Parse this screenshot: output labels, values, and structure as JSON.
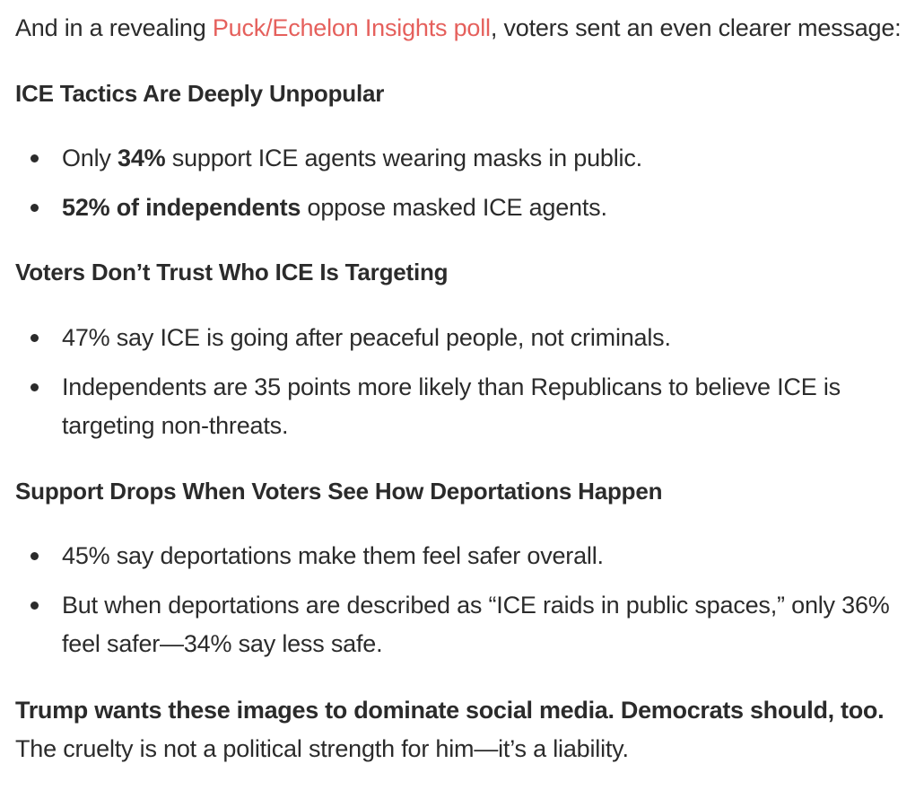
{
  "intro": {
    "before": "And in a revealing ",
    "link": "Puck/Echelon Insights poll",
    "after": ", voters sent an even clearer message:"
  },
  "colors": {
    "text": "#2b2b2b",
    "link": "#e5605c",
    "background": "#ffffff"
  },
  "sections": [
    {
      "heading": "ICE Tactics Are Deeply Unpopular",
      "bullets": [
        {
          "pre": "Only ",
          "bold": "34%",
          "post": " support ICE agents wearing masks in public."
        },
        {
          "pre": "",
          "bold": "52% of independents",
          "post": " oppose masked ICE agents."
        }
      ]
    },
    {
      "heading": "Voters Don’t Trust Who ICE Is Targeting",
      "bullets": [
        {
          "line1": "47% say ICE is going after peaceful people, not criminals."
        },
        {
          "line1": "Independents are 35 points more likely than Republicans to believe ICE is",
          "line2": "targeting non-threats."
        }
      ]
    },
    {
      "heading": "Support Drops When Voters See How Deportations Happen",
      "bullets": [
        {
          "line1": "45% say deportations make them feel safer overall."
        },
        {
          "line1": "But when deportations are described as “ICE raids in public spaces,” only 36%",
          "line2": "feel safer—34% say less safe."
        }
      ]
    }
  ],
  "closing": {
    "bold": "Trump wants these images to dominate social media. Democrats should, too.",
    "text": "The cruelty is not a political strength for him—it’s a liability."
  }
}
